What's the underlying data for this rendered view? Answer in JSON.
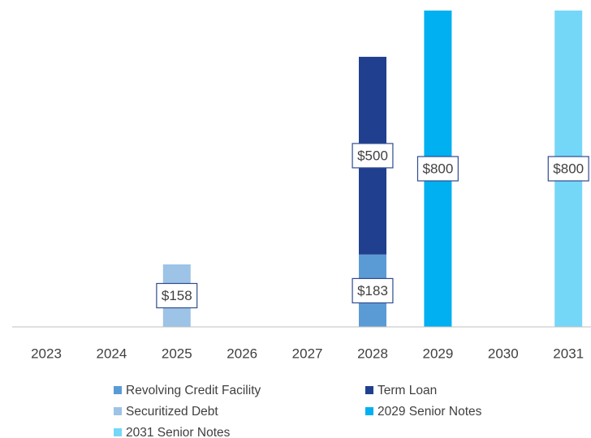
{
  "chart_data": {
    "type": "bar",
    "stacked": true,
    "categories": [
      "2023",
      "2024",
      "2025",
      "2026",
      "2027",
      "2028",
      "2029",
      "2030",
      "2031"
    ],
    "series": [
      {
        "name": "Revolving Credit Facility",
        "color": "#5b9bd5",
        "values": [
          null,
          null,
          null,
          null,
          null,
          183,
          null,
          null,
          null
        ],
        "value_labels": [
          null,
          null,
          null,
          null,
          null,
          "$183",
          null,
          null,
          null
        ]
      },
      {
        "name": "Term Loan",
        "color": "#203f8f",
        "values": [
          null,
          null,
          null,
          null,
          null,
          500,
          null,
          null,
          null
        ],
        "value_labels": [
          null,
          null,
          null,
          null,
          null,
          "$500",
          null,
          null,
          null
        ]
      },
      {
        "name": "Securitized Debt",
        "color": "#9dc3e6",
        "values": [
          null,
          null,
          158,
          null,
          null,
          null,
          null,
          null,
          null
        ],
        "value_labels": [
          null,
          null,
          "$158",
          null,
          null,
          null,
          null,
          null,
          null
        ]
      },
      {
        "name": "2029 Senior Notes",
        "color": "#00b0f0",
        "values": [
          null,
          null,
          null,
          null,
          null,
          null,
          800,
          null,
          null
        ],
        "value_labels": [
          null,
          null,
          null,
          null,
          null,
          null,
          "$800",
          null,
          null
        ]
      },
      {
        "name": "2031 Senior Notes",
        "color": "#75d7f7",
        "values": [
          null,
          null,
          null,
          null,
          null,
          null,
          null,
          null,
          800
        ],
        "value_labels": [
          null,
          null,
          null,
          null,
          null,
          null,
          null,
          null,
          "$800"
        ]
      }
    ]
  }
}
